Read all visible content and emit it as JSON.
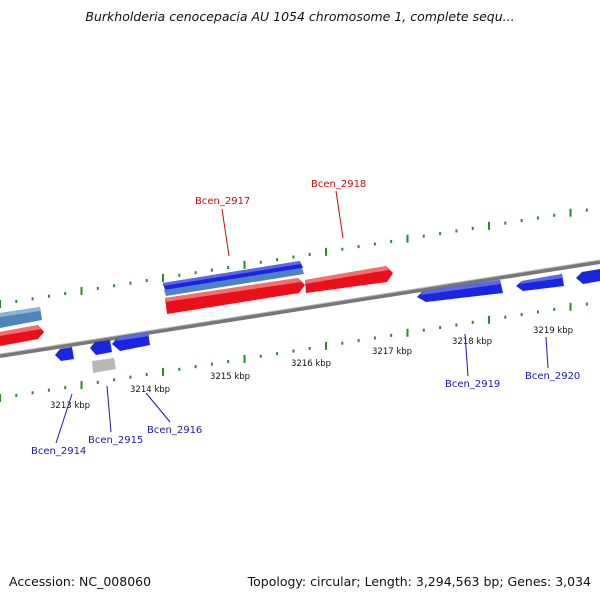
{
  "title": "Burkholderia cenocepacia AU 1054 chromosome 1, complete sequ...",
  "footer": {
    "accession": "Accession: NC_008060",
    "summary": "Topology: circular; Length: 3,294,563 bp; Genes: 3,034"
  },
  "colors": {
    "backbone": "#808080",
    "tick": "#2a8a2a",
    "forward_gene": "#e8101a",
    "reverse_gene": "#1a25e0",
    "other_gene": "#4f84b8",
    "pseudo_gene": "#b8b8b8",
    "label_forward": "#c01010",
    "label_reverse": "#1a1aa8"
  },
  "ticks": [
    {
      "label": "3213 kbp"
    },
    {
      "label": "3214 kbp"
    },
    {
      "label": "3215 kbp"
    },
    {
      "label": "3216 kbp"
    },
    {
      "label": "3217 kbp"
    },
    {
      "label": "3218 kbp"
    },
    {
      "label": "3219 kbp"
    }
  ],
  "gene_labels": [
    {
      "label": "Bcen_2917",
      "strand": "forward"
    },
    {
      "label": "Bcen_2918",
      "strand": "forward"
    },
    {
      "label": "Bcen_2914",
      "strand": "reverse"
    },
    {
      "label": "Bcen_2915",
      "strand": "reverse"
    },
    {
      "label": "Bcen_2916",
      "strand": "reverse"
    },
    {
      "label": "Bcen_2919",
      "strand": "reverse"
    },
    {
      "label": "Bcen_2920",
      "strand": "reverse"
    }
  ]
}
